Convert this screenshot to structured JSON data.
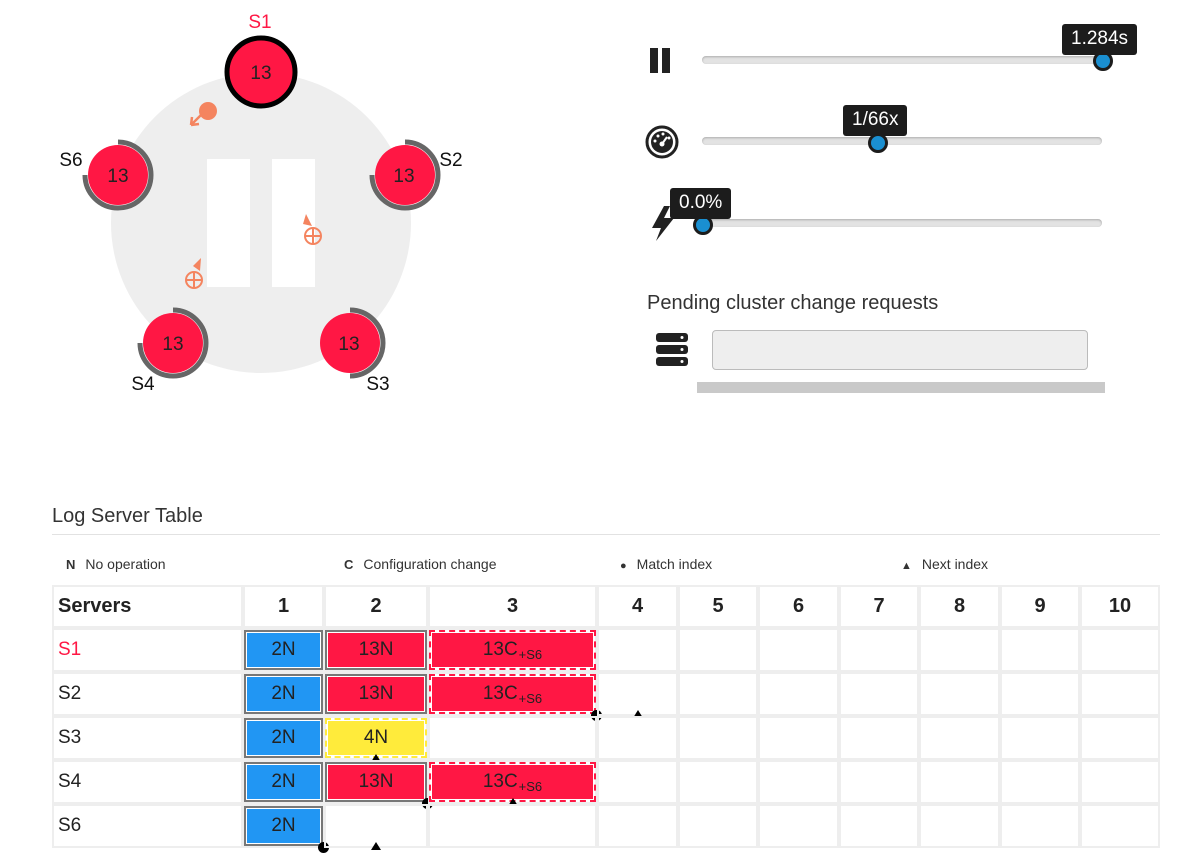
{
  "cluster": {
    "servers": [
      {
        "id": "S1",
        "term": "13",
        "state": "leader",
        "label_color": "#ff1744"
      },
      {
        "id": "S2",
        "term": "13",
        "state": "follower",
        "label_color": "#111111"
      },
      {
        "id": "S3",
        "term": "13",
        "state": "follower",
        "label_color": "#111111"
      },
      {
        "id": "S4",
        "term": "13",
        "state": "follower",
        "label_color": "#111111"
      },
      {
        "id": "S6",
        "term": "13",
        "state": "follower",
        "label_color": "#111111"
      }
    ],
    "colors": {
      "server_fill": "#ff1744",
      "ring": "#eeeeee",
      "message": "#f4845f"
    }
  },
  "controls": {
    "time": {
      "icon": "pause-icon",
      "value_text": "1.284s",
      "fraction": 0.999
    },
    "speed": {
      "icon": "speedometer-icon",
      "value_text": "1/66x",
      "fraction": 0.44
    },
    "failure": {
      "icon": "lightning-icon",
      "value_text": "0.0%",
      "fraction": 0.0
    }
  },
  "pending": {
    "title": "Pending cluster change requests",
    "icon": "server-stack-icon",
    "value": ""
  },
  "log_table": {
    "title": "Log Server Table",
    "legend": [
      {
        "symbol": "N",
        "text": "No operation"
      },
      {
        "symbol": "C",
        "text": "Configuration change"
      },
      {
        "symbol": "●",
        "text": "Match index"
      },
      {
        "symbol": "▲",
        "text": "Next index"
      }
    ],
    "header": "Servers",
    "indices": [
      "1",
      "2",
      "3",
      "4",
      "5",
      "6",
      "7",
      "8",
      "9",
      "10"
    ],
    "rows": [
      {
        "server": "S1",
        "color": "#ff1744",
        "entries": [
          {
            "text": "2N",
            "color": "blue"
          },
          {
            "text": "13N",
            "color": "red"
          },
          {
            "text": "13C",
            "sub": "+S6",
            "color": "red",
            "uncommitted": true
          }
        ],
        "match_index": null,
        "next_index": null
      },
      {
        "server": "S2",
        "color": "#222222",
        "entries": [
          {
            "text": "2N",
            "color": "blue"
          },
          {
            "text": "13N",
            "color": "red"
          },
          {
            "text": "13C",
            "sub": "+S6",
            "color": "red",
            "uncommitted": true
          }
        ],
        "match_index": 3,
        "next_index": 4
      },
      {
        "server": "S3",
        "color": "#222222",
        "entries": [
          {
            "text": "2N",
            "color": "blue"
          },
          {
            "text": "4N",
            "color": "yellow"
          }
        ],
        "match_index": 0,
        "next_index": 2
      },
      {
        "server": "S4",
        "color": "#222222",
        "entries": [
          {
            "text": "2N",
            "color": "blue"
          },
          {
            "text": "13N",
            "color": "red"
          },
          {
            "text": "13C",
            "sub": "+S6",
            "color": "red",
            "uncommitted": true
          }
        ],
        "match_index": 2,
        "next_index": 3
      },
      {
        "server": "S6",
        "color": "#222222",
        "entries": [
          {
            "text": "2N",
            "color": "blue"
          }
        ],
        "match_index": 1,
        "next_index": 2
      }
    ]
  }
}
